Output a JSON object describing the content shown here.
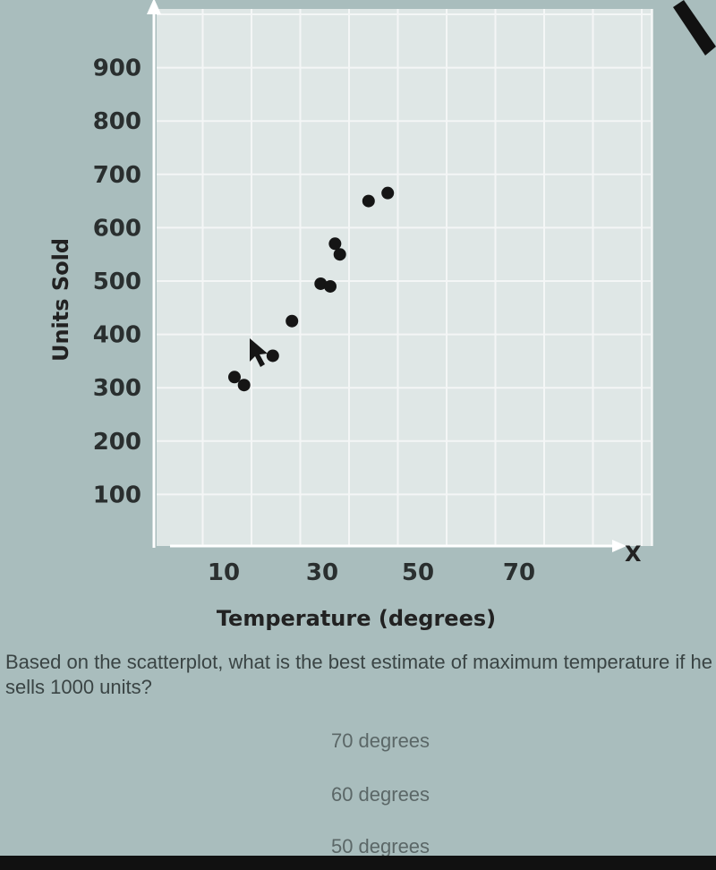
{
  "chart_data": {
    "type": "scatter",
    "xlabel": "Temperature (degrees)",
    "ylabel": "Units Sold",
    "x_axis_letter": "X",
    "x_ticks": [
      10,
      30,
      50,
      70
    ],
    "y_ticks": [
      100,
      200,
      300,
      400,
      500,
      600,
      700,
      800,
      900
    ],
    "xlim": [
      0,
      90
    ],
    "ylim": [
      0,
      1000
    ],
    "grid": true,
    "points": [
      {
        "x": 20,
        "y": 320
      },
      {
        "x": 22,
        "y": 305
      },
      {
        "x": 28,
        "y": 360
      },
      {
        "x": 32,
        "y": 425
      },
      {
        "x": 38,
        "y": 495
      },
      {
        "x": 40,
        "y": 490
      },
      {
        "x": 41,
        "y": 570
      },
      {
        "x": 42,
        "y": 550
      },
      {
        "x": 48,
        "y": 650
      },
      {
        "x": 52,
        "y": 665
      }
    ],
    "colors": {
      "points": "#151515",
      "grid": "#f4f6f6",
      "background": "#eef2f1",
      "axis": "#ffffff"
    }
  },
  "question": {
    "text": "Based on the scatterplot, what is the best estimate of maximum temperature if he sells 1000 units?",
    "choices": [
      "70 degrees",
      "60 degrees",
      "50 degrees"
    ]
  }
}
